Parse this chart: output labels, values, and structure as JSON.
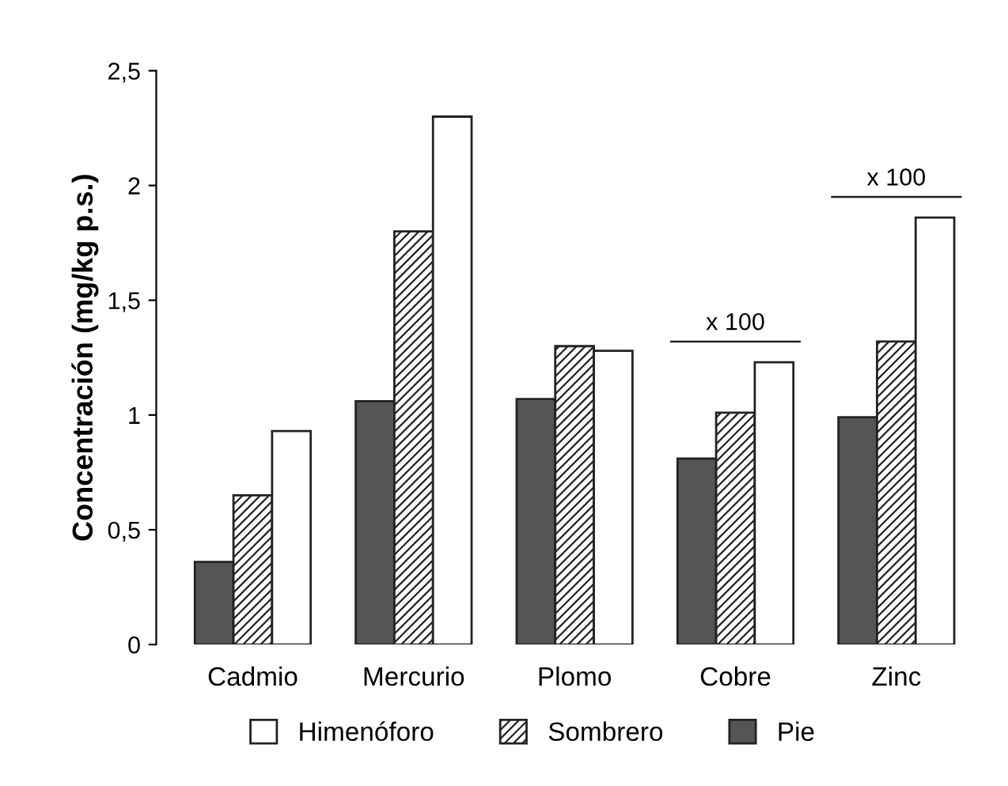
{
  "chart_data": {
    "type": "bar",
    "ylabel": "Concentración (mg/kg p.s.)",
    "categories": [
      "Cadmio",
      "Mercurio",
      "Plomo",
      "Cobre",
      "Zinc"
    ],
    "series": [
      {
        "name": "Pie",
        "color": "#555555",
        "values": [
          0.36,
          1.06,
          1.07,
          0.81,
          0.99
        ]
      },
      {
        "name": "Sombrero",
        "color": "#222222",
        "values": [
          0.65,
          1.8,
          1.3,
          1.01,
          1.32
        ]
      },
      {
        "name": "Himenóforo",
        "color": "#ffffff",
        "values": [
          0.93,
          2.3,
          1.28,
          1.23,
          1.86
        ]
      }
    ],
    "ylim": [
      0,
      2.5
    ],
    "yticks": [
      0,
      {
        "value": 0.5,
        "label": "0,5"
      },
      1,
      {
        "value": 1.5,
        "label": "1,5"
      },
      2,
      {
        "value": 2.5,
        "label": "2,5"
      }
    ],
    "annotations": [
      "x 100",
      "x 100"
    ],
    "legend": "bottom",
    "grid": false
  }
}
